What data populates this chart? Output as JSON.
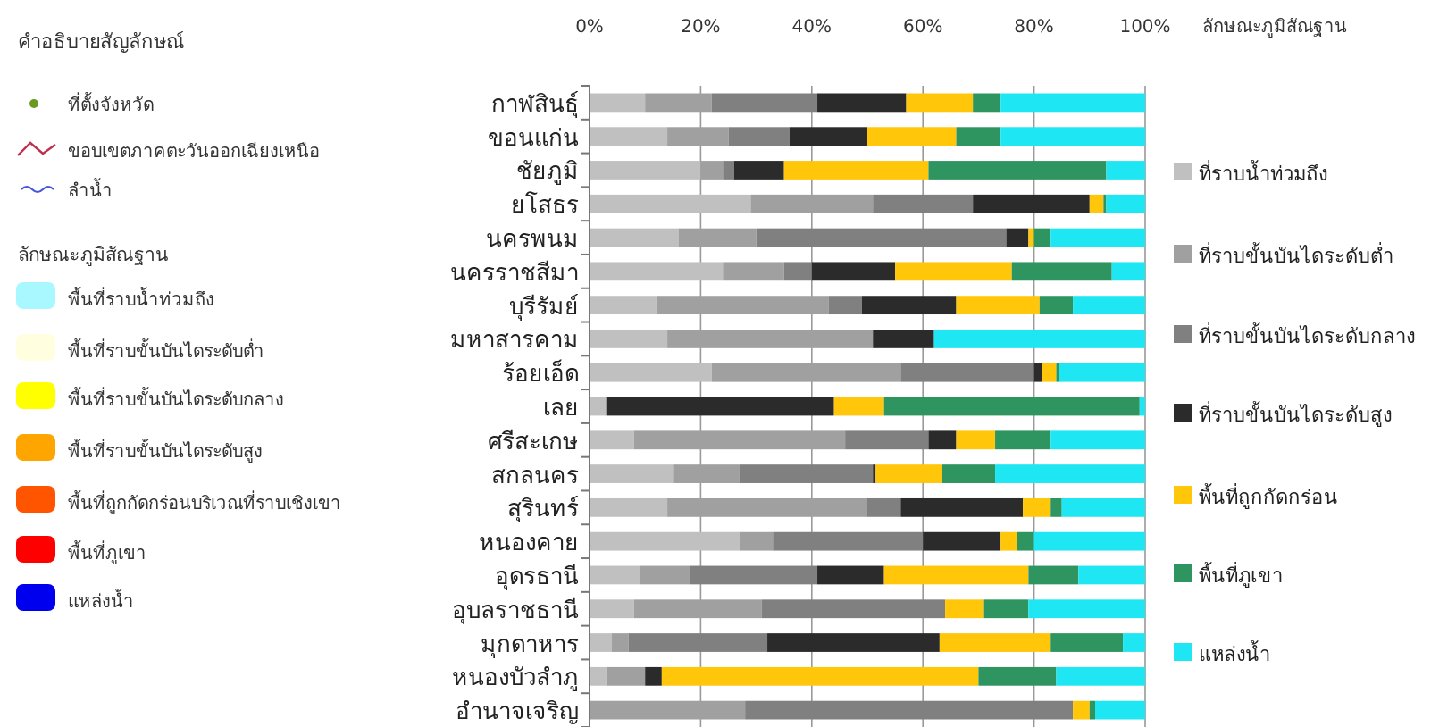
{
  "chart_data": [
    {
      "type": "other",
      "title": "คำอธิบายสัญลักษณ์",
      "annotations": [
        "ที่ตั้งจังหวัด",
        "ขอบเขตภาคตะวันออกเฉียงเหนือ",
        "ลำน้ำ",
        "ลักษณะภูมิสัณฐาน",
        "พื้นที่ราบน้ำท่วมถึง",
        "พื้นที่ราบขั้นบันไดระดับต่ำ",
        "พื้นที่ราบขั้นบันไดระดับกลาง",
        "พื้นที่ราบขั้นบันไดระดับสูง",
        "พื้นที่ถูกกัดกร่อนบริเวณที่ราบเชิงเขา",
        "พื้นที่ภูเขา",
        "แหล่งน้ำ"
      ]
    },
    {
      "type": "bar",
      "orientation": "horizontal",
      "stacked": true,
      "legend": "right",
      "legend_title": "ลักษณะภูมิสัณฐาน",
      "grid": "x",
      "categories": [
        "กาฬสินธุ์",
        "ขอนแก่น",
        "ชัยภูมิ",
        "ยโสธร",
        "นครพนม",
        "นครราชสีมา",
        "บุรีรัมย์",
        "มหาสารคาม",
        "ร้อยเอ็ด",
        "เลย",
        "ศรีสะเกษ",
        "สกลนคร",
        "สุรินทร์",
        "หนองคาย",
        "อุดรธานี",
        "อุบลราชธานี",
        "มุกดาหาร",
        "หนองบัวลำภู",
        "อำนาจเจริญ"
      ],
      "xlim": [
        0,
        100
      ],
      "xticks": [
        {
          "value": 0,
          "label": "0%"
        },
        {
          "value": 20,
          "label": "20%"
        },
        {
          "value": 40,
          "label": "40%"
        },
        {
          "value": 60,
          "label": "60%"
        },
        {
          "value": 80,
          "label": "80%"
        },
        {
          "value": 100,
          "label": "100%"
        }
      ],
      "series": [
        {
          "name": "ที่ราบน้ำท่วมถึง",
          "color": "#c0c0c0",
          "values": [
            10,
            14,
            20,
            29,
            16,
            24,
            12,
            14,
            22,
            3,
            8,
            15,
            14,
            27,
            9,
            8,
            4,
            3,
            0
          ]
        },
        {
          "name": "ที่ราบขั้นบันไดระดับต่ำ",
          "color": "#a0a0a0",
          "values": [
            12,
            11,
            4,
            22,
            14,
            11,
            31,
            37,
            34,
            0,
            38,
            12,
            36,
            6,
            9,
            23,
            3,
            7,
            28
          ]
        },
        {
          "name": "ที่ราบขั้นบันไดระดับกลาง",
          "color": "#808080",
          "values": [
            19,
            11,
            2,
            18,
            45,
            5,
            6,
            0,
            24,
            0,
            15,
            24,
            6,
            27,
            23,
            33,
            25,
            0,
            59
          ]
        },
        {
          "name": "ที่ราบขั้นบันไดระดับสูง",
          "color": "#2b2b2b",
          "values": [
            16,
            14,
            9,
            21,
            4,
            15,
            17,
            11,
            1.5,
            41,
            5,
            0.5,
            22,
            14,
            12,
            0,
            31,
            3,
            0
          ]
        },
        {
          "name": "พื้นที่ถูกกัดกร่อน",
          "color": "#ffc60a",
          "values": [
            12,
            16,
            26,
            2.5,
            1,
            21,
            15,
            0,
            2.5,
            9,
            7,
            12,
            5,
            3,
            26,
            7,
            20,
            57,
            3
          ]
        },
        {
          "name": "พื้นที่ภูเขา",
          "color": "#2e9460",
          "values": [
            5,
            8,
            32,
            0.5,
            3,
            18,
            6,
            0,
            0.5,
            46,
            10,
            9.5,
            2,
            3,
            9,
            8,
            13,
            14,
            1
          ]
        },
        {
          "name": "แหล่งน้ำ",
          "color": "#1ee6f2",
          "values": [
            26,
            26,
            7,
            7,
            17,
            6,
            13,
            38,
            15.5,
            1,
            17,
            27,
            15,
            20,
            12,
            21,
            4,
            16,
            9
          ]
        }
      ]
    }
  ]
}
